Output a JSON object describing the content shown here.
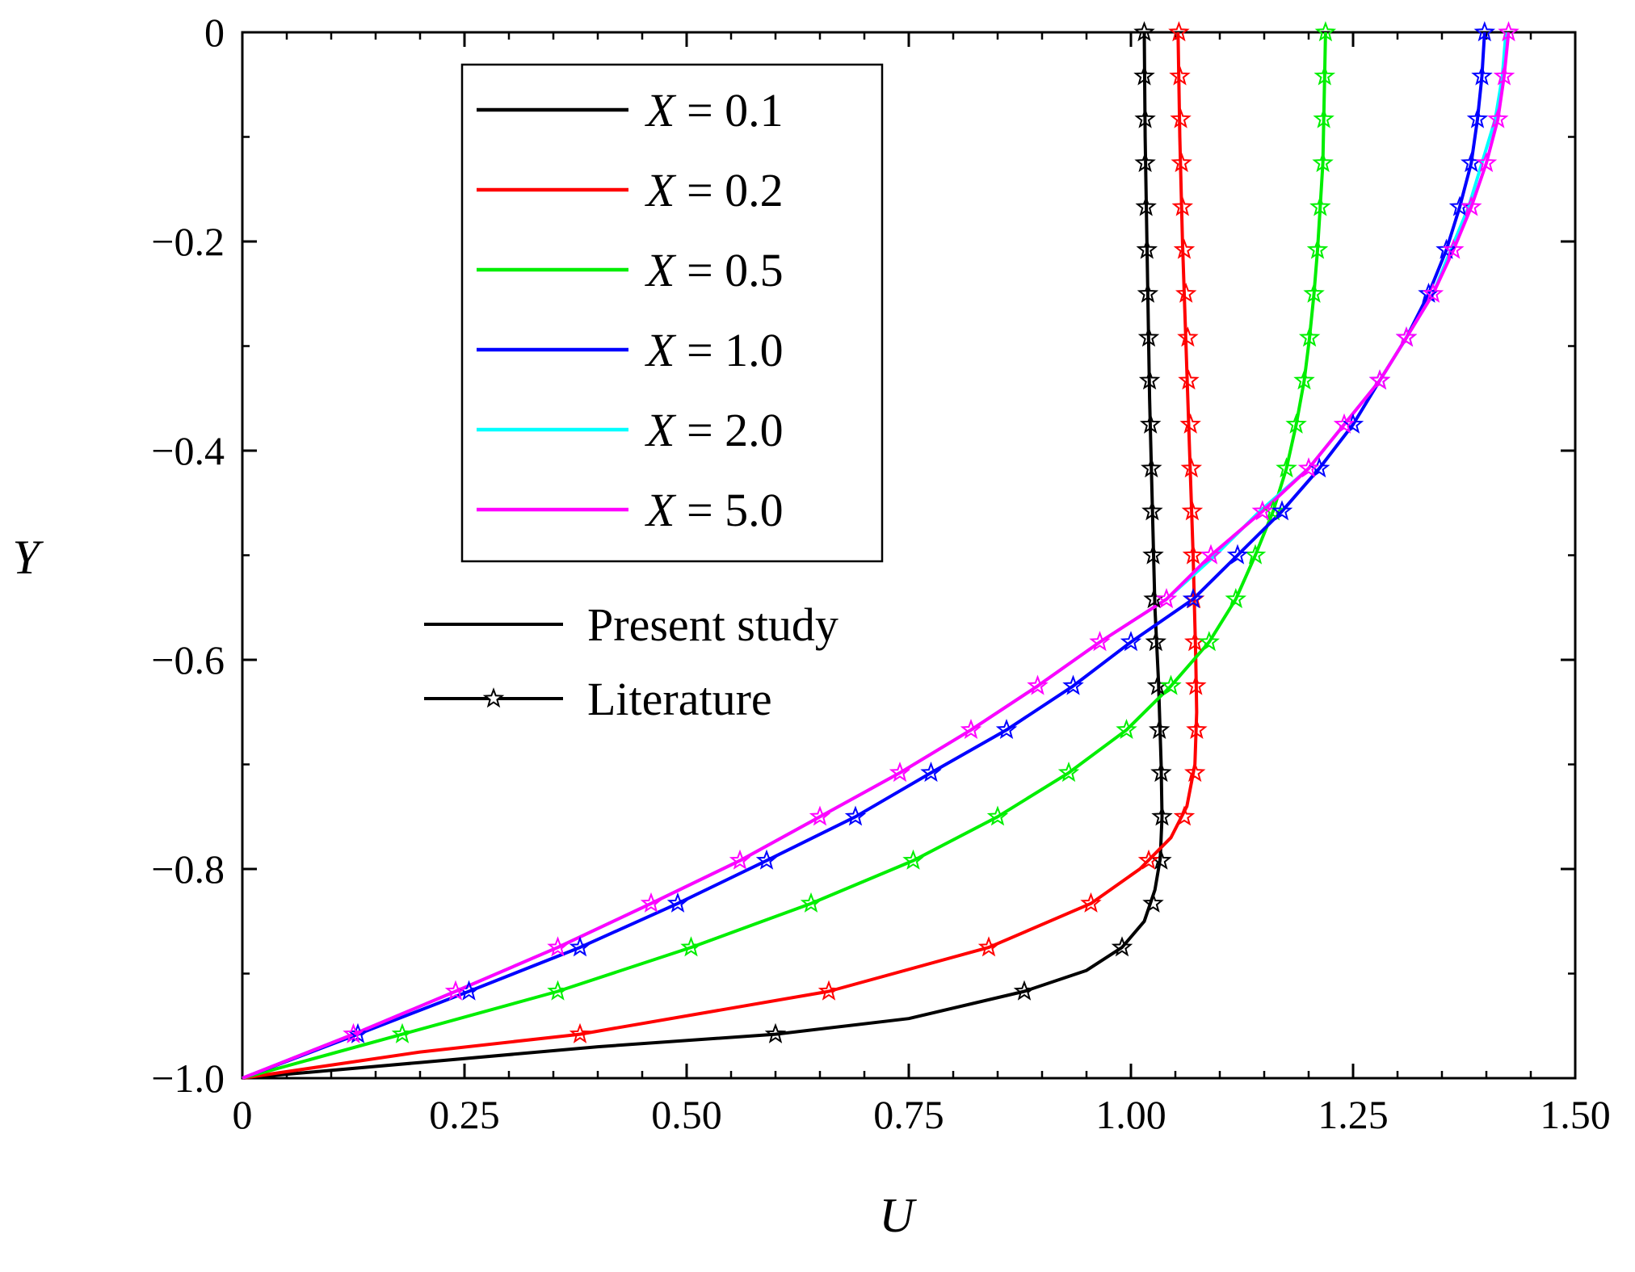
{
  "chart_data": {
    "type": "line",
    "xlabel": "U",
    "ylabel": "Y",
    "xlim": [
      0,
      1.5
    ],
    "ylim": [
      -1.0,
      0
    ],
    "x_ticks": [
      "0",
      "0.25",
      "0.50",
      "0.75",
      "1.00",
      "1.25",
      "1.50"
    ],
    "y_ticks": [
      "0",
      "−0.2",
      "−0.4",
      "−0.6",
      "−0.8",
      "−1.0"
    ],
    "legend_position": "top-left",
    "series": [
      {
        "name": "X = 0.1",
        "var": "X",
        "value_text": " = 0.1",
        "color": "#000000",
        "points": [
          [
            0,
            -1.0
          ],
          [
            0.2,
            -0.985
          ],
          [
            0.4,
            -0.97
          ],
          [
            0.6,
            -0.958
          ],
          [
            0.75,
            -0.943
          ],
          [
            0.88,
            -0.917
          ],
          [
            0.95,
            -0.897
          ],
          [
            0.99,
            -0.875
          ],
          [
            1.015,
            -0.85
          ],
          [
            1.027,
            -0.82
          ],
          [
            1.033,
            -0.79
          ],
          [
            1.035,
            -0.75
          ],
          [
            1.034,
            -0.7
          ],
          [
            1.031,
            -0.62
          ],
          [
            1.027,
            -0.55
          ],
          [
            1.024,
            -0.45
          ],
          [
            1.021,
            -0.35
          ],
          [
            1.018,
            -0.2
          ],
          [
            1.016,
            -0.1
          ],
          [
            1.015,
            0
          ]
        ],
        "markers": [
          [
            0.6,
            -0.958
          ],
          [
            0.88,
            -0.917
          ],
          [
            0.99,
            -0.875
          ],
          [
            1.025,
            -0.833
          ],
          [
            1.034,
            -0.792
          ],
          [
            1.035,
            -0.75
          ],
          [
            1.034,
            -0.708
          ],
          [
            1.032,
            -0.667
          ],
          [
            1.03,
            -0.625
          ],
          [
            1.028,
            -0.583
          ],
          [
            1.026,
            -0.542
          ],
          [
            1.025,
            -0.5
          ],
          [
            1.024,
            -0.458
          ],
          [
            1.023,
            -0.417
          ],
          [
            1.022,
            -0.375
          ],
          [
            1.021,
            -0.333
          ],
          [
            1.02,
            -0.292
          ],
          [
            1.019,
            -0.25
          ],
          [
            1.018,
            -0.208
          ],
          [
            1.017,
            -0.167
          ],
          [
            1.016,
            -0.125
          ],
          [
            1.016,
            -0.083
          ],
          [
            1.015,
            -0.042
          ],
          [
            1.015,
            0
          ]
        ]
      },
      {
        "name": "X = 0.2",
        "var": "X",
        "value_text": " = 0.2",
        "color": "#ff0000",
        "points": [
          [
            0,
            -1.0
          ],
          [
            0.2,
            -0.975
          ],
          [
            0.38,
            -0.958
          ],
          [
            0.66,
            -0.917
          ],
          [
            0.84,
            -0.875
          ],
          [
            0.955,
            -0.833
          ],
          [
            1.01,
            -0.8
          ],
          [
            1.045,
            -0.77
          ],
          [
            1.063,
            -0.74
          ],
          [
            1.072,
            -0.7
          ],
          [
            1.074,
            -0.65
          ],
          [
            1.073,
            -0.6
          ],
          [
            1.07,
            -0.5
          ],
          [
            1.066,
            -0.4
          ],
          [
            1.062,
            -0.3
          ],
          [
            1.058,
            -0.2
          ],
          [
            1.055,
            -0.1
          ],
          [
            1.053,
            0
          ]
        ],
        "markers": [
          [
            0.38,
            -0.958
          ],
          [
            0.66,
            -0.917
          ],
          [
            0.84,
            -0.875
          ],
          [
            0.955,
            -0.833
          ],
          [
            1.02,
            -0.792
          ],
          [
            1.06,
            -0.75
          ],
          [
            1.072,
            -0.708
          ],
          [
            1.074,
            -0.667
          ],
          [
            1.073,
            -0.625
          ],
          [
            1.072,
            -0.583
          ],
          [
            1.071,
            -0.542
          ],
          [
            1.07,
            -0.5
          ],
          [
            1.069,
            -0.458
          ],
          [
            1.068,
            -0.417
          ],
          [
            1.067,
            -0.375
          ],
          [
            1.065,
            -0.333
          ],
          [
            1.064,
            -0.292
          ],
          [
            1.062,
            -0.25
          ],
          [
            1.06,
            -0.208
          ],
          [
            1.058,
            -0.167
          ],
          [
            1.057,
            -0.125
          ],
          [
            1.056,
            -0.083
          ],
          [
            1.055,
            -0.042
          ],
          [
            1.054,
            0
          ]
        ]
      },
      {
        "name": "X = 0.5",
        "var": "X",
        "value_text": " = 0.5",
        "color": "#00ee00",
        "points": [
          [
            0,
            -1.0
          ],
          [
            0.18,
            -0.958
          ],
          [
            0.355,
            -0.917
          ],
          [
            0.505,
            -0.875
          ],
          [
            0.64,
            -0.833
          ],
          [
            0.755,
            -0.792
          ],
          [
            0.85,
            -0.75
          ],
          [
            0.93,
            -0.708
          ],
          [
            0.995,
            -0.667
          ],
          [
            1.045,
            -0.625
          ],
          [
            1.088,
            -0.583
          ],
          [
            1.118,
            -0.542
          ],
          [
            1.14,
            -0.5
          ],
          [
            1.16,
            -0.458
          ],
          [
            1.175,
            -0.417
          ],
          [
            1.186,
            -0.375
          ],
          [
            1.195,
            -0.333
          ],
          [
            1.201,
            -0.292
          ],
          [
            1.206,
            -0.25
          ],
          [
            1.21,
            -0.208
          ],
          [
            1.213,
            -0.167
          ],
          [
            1.216,
            -0.125
          ],
          [
            1.217,
            -0.083
          ],
          [
            1.218,
            -0.042
          ],
          [
            1.219,
            0
          ]
        ],
        "markers": [
          [
            0.18,
            -0.958
          ],
          [
            0.355,
            -0.917
          ],
          [
            0.505,
            -0.875
          ],
          [
            0.64,
            -0.833
          ],
          [
            0.755,
            -0.792
          ],
          [
            0.85,
            -0.75
          ],
          [
            0.93,
            -0.708
          ],
          [
            0.995,
            -0.667
          ],
          [
            1.045,
            -0.625
          ],
          [
            1.088,
            -0.583
          ],
          [
            1.118,
            -0.542
          ],
          [
            1.14,
            -0.5
          ],
          [
            1.16,
            -0.458
          ],
          [
            1.175,
            -0.417
          ],
          [
            1.186,
            -0.375
          ],
          [
            1.195,
            -0.333
          ],
          [
            1.201,
            -0.292
          ],
          [
            1.206,
            -0.25
          ],
          [
            1.21,
            -0.208
          ],
          [
            1.213,
            -0.167
          ],
          [
            1.216,
            -0.125
          ],
          [
            1.217,
            -0.083
          ],
          [
            1.218,
            -0.042
          ],
          [
            1.219,
            0
          ]
        ]
      },
      {
        "name": "X = 1.0",
        "var": "X",
        "value_text": " = 1.0",
        "color": "#0000ff",
        "points": [
          [
            0,
            -1.0
          ],
          [
            0.13,
            -0.958
          ],
          [
            0.255,
            -0.917
          ],
          [
            0.38,
            -0.875
          ],
          [
            0.49,
            -0.833
          ],
          [
            0.59,
            -0.792
          ],
          [
            0.69,
            -0.75
          ],
          [
            0.775,
            -0.708
          ],
          [
            0.86,
            -0.667
          ],
          [
            0.935,
            -0.625
          ],
          [
            1.0,
            -0.583
          ],
          [
            1.07,
            -0.542
          ],
          [
            1.12,
            -0.5
          ],
          [
            1.17,
            -0.458
          ],
          [
            1.212,
            -0.417
          ],
          [
            1.25,
            -0.375
          ],
          [
            1.28,
            -0.333
          ],
          [
            1.31,
            -0.292
          ],
          [
            1.335,
            -0.25
          ],
          [
            1.355,
            -0.208
          ],
          [
            1.37,
            -0.167
          ],
          [
            1.383,
            -0.125
          ],
          [
            1.39,
            -0.083
          ],
          [
            1.395,
            -0.042
          ],
          [
            1.398,
            0
          ]
        ],
        "markers": [
          [
            0.13,
            -0.958
          ],
          [
            0.255,
            -0.917
          ],
          [
            0.38,
            -0.875
          ],
          [
            0.49,
            -0.833
          ],
          [
            0.59,
            -0.792
          ],
          [
            0.69,
            -0.75
          ],
          [
            0.775,
            -0.708
          ],
          [
            0.86,
            -0.667
          ],
          [
            0.935,
            -0.625
          ],
          [
            1.0,
            -0.583
          ],
          [
            1.07,
            -0.542
          ],
          [
            1.12,
            -0.5
          ],
          [
            1.17,
            -0.458
          ],
          [
            1.212,
            -0.417
          ],
          [
            1.25,
            -0.375
          ],
          [
            1.28,
            -0.333
          ],
          [
            1.31,
            -0.292
          ],
          [
            1.335,
            -0.25
          ],
          [
            1.355,
            -0.208
          ],
          [
            1.37,
            -0.167
          ],
          [
            1.383,
            -0.125
          ],
          [
            1.39,
            -0.083
          ],
          [
            1.395,
            -0.042
          ],
          [
            1.398,
            0
          ]
        ]
      },
      {
        "name": "X = 2.0",
        "var": "X",
        "value_text": " = 2.0",
        "color": "#00ffff",
        "points": [
          [
            0,
            -1.0
          ],
          [
            0.125,
            -0.958
          ],
          [
            0.24,
            -0.917
          ],
          [
            0.355,
            -0.875
          ],
          [
            0.46,
            -0.833
          ],
          [
            0.56,
            -0.792
          ],
          [
            0.65,
            -0.75
          ],
          [
            0.74,
            -0.708
          ],
          [
            0.82,
            -0.667
          ],
          [
            0.895,
            -0.625
          ],
          [
            0.965,
            -0.583
          ],
          [
            1.04,
            -0.542
          ],
          [
            1.095,
            -0.5
          ],
          [
            1.145,
            -0.458
          ],
          [
            1.2,
            -0.417
          ],
          [
            1.24,
            -0.375
          ],
          [
            1.28,
            -0.333
          ],
          [
            1.31,
            -0.292
          ],
          [
            1.34,
            -0.25
          ],
          [
            1.36,
            -0.208
          ],
          [
            1.38,
            -0.167
          ],
          [
            1.395,
            -0.125
          ],
          [
            1.41,
            -0.083
          ],
          [
            1.418,
            -0.042
          ],
          [
            1.422,
            0
          ]
        ],
        "markers": []
      },
      {
        "name": "X = 5.0",
        "var": "X",
        "value_text": " = 5.0",
        "color": "#ff00ff",
        "points": [
          [
            0,
            -1.0
          ],
          [
            0.125,
            -0.958
          ],
          [
            0.24,
            -0.917
          ],
          [
            0.355,
            -0.875
          ],
          [
            0.46,
            -0.833
          ],
          [
            0.56,
            -0.792
          ],
          [
            0.65,
            -0.75
          ],
          [
            0.74,
            -0.708
          ],
          [
            0.82,
            -0.667
          ],
          [
            0.895,
            -0.625
          ],
          [
            0.965,
            -0.583
          ],
          [
            1.04,
            -0.542
          ],
          [
            1.09,
            -0.5
          ],
          [
            1.148,
            -0.458
          ],
          [
            1.2,
            -0.417
          ],
          [
            1.24,
            -0.375
          ],
          [
            1.28,
            -0.333
          ],
          [
            1.31,
            -0.292
          ],
          [
            1.34,
            -0.25
          ],
          [
            1.363,
            -0.208
          ],
          [
            1.383,
            -0.167
          ],
          [
            1.4,
            -0.125
          ],
          [
            1.413,
            -0.083
          ],
          [
            1.42,
            -0.042
          ],
          [
            1.425,
            0
          ]
        ],
        "markers": [
          [
            0.125,
            -0.958
          ],
          [
            0.24,
            -0.917
          ],
          [
            0.355,
            -0.875
          ],
          [
            0.46,
            -0.833
          ],
          [
            0.56,
            -0.792
          ],
          [
            0.65,
            -0.75
          ],
          [
            0.74,
            -0.708
          ],
          [
            0.82,
            -0.667
          ],
          [
            0.895,
            -0.625
          ],
          [
            0.965,
            -0.583
          ],
          [
            1.04,
            -0.542
          ],
          [
            1.09,
            -0.5
          ],
          [
            1.148,
            -0.458
          ],
          [
            1.2,
            -0.417
          ],
          [
            1.24,
            -0.375
          ],
          [
            1.28,
            -0.333
          ],
          [
            1.31,
            -0.292
          ],
          [
            1.34,
            -0.25
          ],
          [
            1.363,
            -0.208
          ],
          [
            1.383,
            -0.167
          ],
          [
            1.4,
            -0.125
          ],
          [
            1.413,
            -0.083
          ],
          [
            1.42,
            -0.042
          ],
          [
            1.425,
            0
          ]
        ]
      }
    ],
    "style_legend": [
      {
        "label": "Present study",
        "marker": false
      },
      {
        "label": "Literature",
        "marker": true
      }
    ]
  }
}
